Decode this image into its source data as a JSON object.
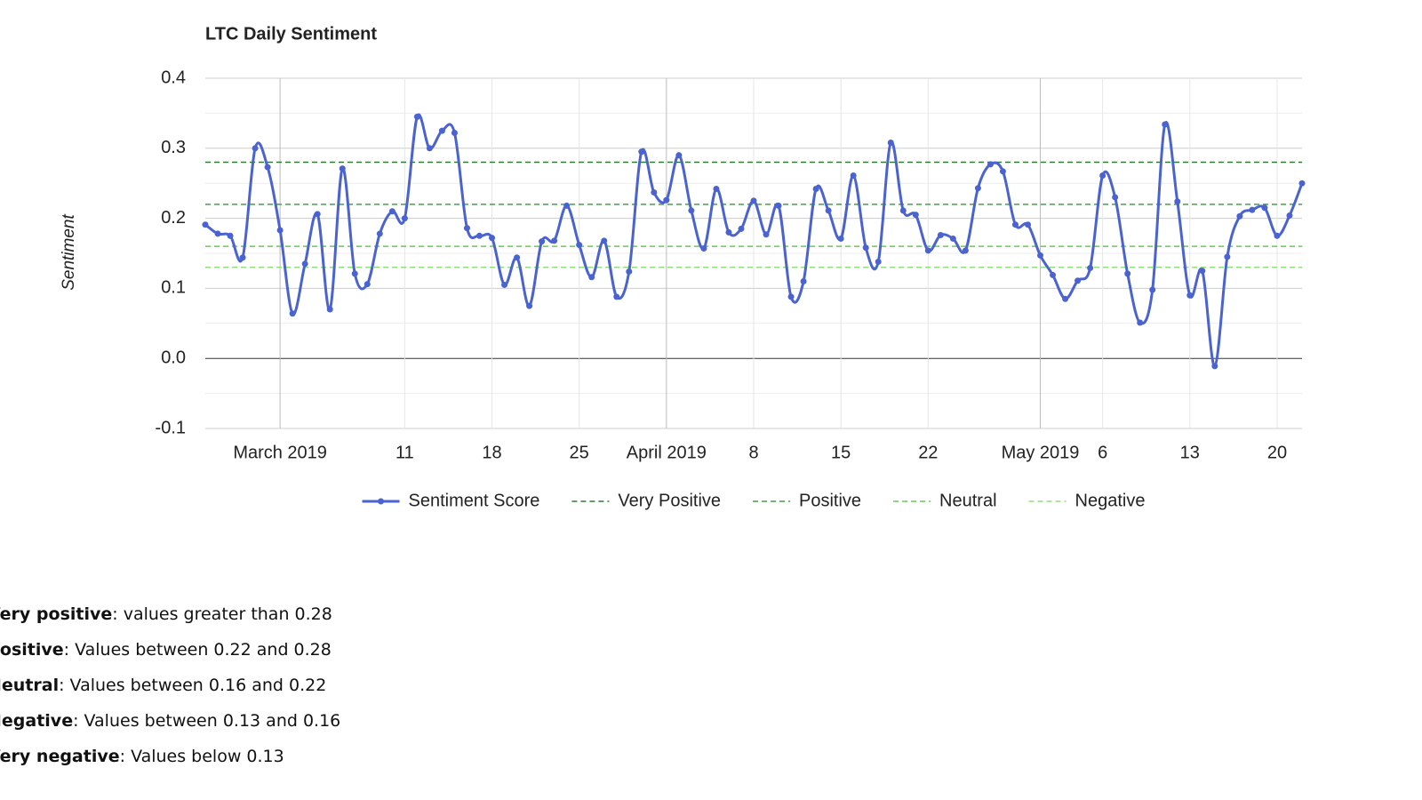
{
  "chart_data": {
    "type": "line",
    "title": "LTC Daily Sentiment",
    "ylabel": "Sentiment",
    "x": [
      "2019-02-23",
      "2019-02-24",
      "2019-02-25",
      "2019-02-26",
      "2019-02-27",
      "2019-02-28",
      "2019-03-01",
      "2019-03-02",
      "2019-03-03",
      "2019-03-04",
      "2019-03-05",
      "2019-03-06",
      "2019-03-07",
      "2019-03-08",
      "2019-03-09",
      "2019-03-10",
      "2019-03-11",
      "2019-03-12",
      "2019-03-13",
      "2019-03-14",
      "2019-03-15",
      "2019-03-16",
      "2019-03-17",
      "2019-03-18",
      "2019-03-19",
      "2019-03-20",
      "2019-03-21",
      "2019-03-22",
      "2019-03-23",
      "2019-03-24",
      "2019-03-25",
      "2019-03-26",
      "2019-03-27",
      "2019-03-28",
      "2019-03-29",
      "2019-03-30",
      "2019-03-31",
      "2019-04-01",
      "2019-04-02",
      "2019-04-03",
      "2019-04-04",
      "2019-04-05",
      "2019-04-06",
      "2019-04-07",
      "2019-04-08",
      "2019-04-09",
      "2019-04-10",
      "2019-04-11",
      "2019-04-12",
      "2019-04-13",
      "2019-04-14",
      "2019-04-15",
      "2019-04-16",
      "2019-04-17",
      "2019-04-18",
      "2019-04-19",
      "2019-04-20",
      "2019-04-21",
      "2019-04-22",
      "2019-04-23",
      "2019-04-24",
      "2019-04-25",
      "2019-04-26",
      "2019-04-27",
      "2019-04-28",
      "2019-04-29",
      "2019-04-30",
      "2019-05-01",
      "2019-05-02",
      "2019-05-03",
      "2019-05-04",
      "2019-05-05",
      "2019-05-06",
      "2019-05-07",
      "2019-05-08",
      "2019-05-09",
      "2019-05-10",
      "2019-05-11",
      "2019-05-12",
      "2019-05-13",
      "2019-05-14",
      "2019-05-15",
      "2019-05-16",
      "2019-05-17",
      "2019-05-18",
      "2019-05-19",
      "2019-05-20",
      "2019-05-21",
      "2019-05-22"
    ],
    "series": [
      {
        "name": "Sentiment Score",
        "color": "#4a63d1",
        "values": [
          0.191,
          0.178,
          0.175,
          0.144,
          0.3,
          0.273,
          0.183,
          0.064,
          0.135,
          0.206,
          0.07,
          0.271,
          0.121,
          0.106,
          0.178,
          0.21,
          0.2,
          0.345,
          0.3,
          0.325,
          0.322,
          0.186,
          0.175,
          0.172,
          0.105,
          0.144,
          0.075,
          0.167,
          0.168,
          0.218,
          0.162,
          0.116,
          0.168,
          0.088,
          0.124,
          0.295,
          0.237,
          0.226,
          0.29,
          0.211,
          0.157,
          0.242,
          0.18,
          0.185,
          0.225,
          0.177,
          0.218,
          0.088,
          0.11,
          0.242,
          0.211,
          0.171,
          0.261,
          0.158,
          0.138,
          0.308,
          0.211,
          0.205,
          0.154,
          0.176,
          0.171,
          0.154,
          0.243,
          0.277,
          0.267,
          0.191,
          0.191,
          0.147,
          0.119,
          0.085,
          0.111,
          0.129,
          0.261,
          0.23,
          0.121,
          0.051,
          0.098,
          0.334,
          0.224,
          0.09,
          0.125,
          -0.011,
          0.145,
          0.203,
          0.212,
          0.215,
          0.175,
          0.204,
          0.25
        ]
      }
    ],
    "reference_lines": [
      {
        "name": "Very Positive",
        "value": 0.28,
        "color": "#2e7d32"
      },
      {
        "name": "Positive",
        "value": 0.22,
        "color": "#43a047"
      },
      {
        "name": "Neutral",
        "value": 0.16,
        "color": "#66cc55"
      },
      {
        "name": "Negative",
        "value": 0.13,
        "color": "#8ee07a"
      }
    ],
    "xlim": [
      "2019-02-23",
      "2019-05-22"
    ],
    "xticks": [
      {
        "value": "2019-03-01",
        "label": "March 2019"
      },
      {
        "value": "2019-03-11",
        "label": "11"
      },
      {
        "value": "2019-03-18",
        "label": "18"
      },
      {
        "value": "2019-03-25",
        "label": "25"
      },
      {
        "value": "2019-04-01",
        "label": "April 2019"
      },
      {
        "value": "2019-04-08",
        "label": "8"
      },
      {
        "value": "2019-04-15",
        "label": "15"
      },
      {
        "value": "2019-04-22",
        "label": "22"
      },
      {
        "value": "2019-05-01",
        "label": "May 2019"
      },
      {
        "value": "2019-05-06",
        "label": "6"
      },
      {
        "value": "2019-05-13",
        "label": "13"
      },
      {
        "value": "2019-05-20",
        "label": "20"
      }
    ],
    "ylim": [
      -0.1,
      0.4
    ],
    "yticks": [
      -0.1,
      {
        "value": 0,
        "label": "0.0"
      },
      0.1,
      0.2,
      0.3,
      0.4
    ],
    "yminor": [
      -0.05,
      0.05,
      0.15,
      0.25,
      0.35
    ],
    "grid": true,
    "legend": "bottom"
  },
  "definitions": [
    {
      "term": "Very positive",
      "text": ": values greater than 0.28"
    },
    {
      "term": "Positive",
      "text": ": Values between 0.22 and 0.28"
    },
    {
      "term": "Neutral",
      "text": ": Values between 0.16 and 0.22"
    },
    {
      "term": "Negative",
      "text": ": Values between 0.13 and 0.16"
    },
    {
      "term": "Very negative",
      "text": ": Values below 0.13"
    }
  ]
}
